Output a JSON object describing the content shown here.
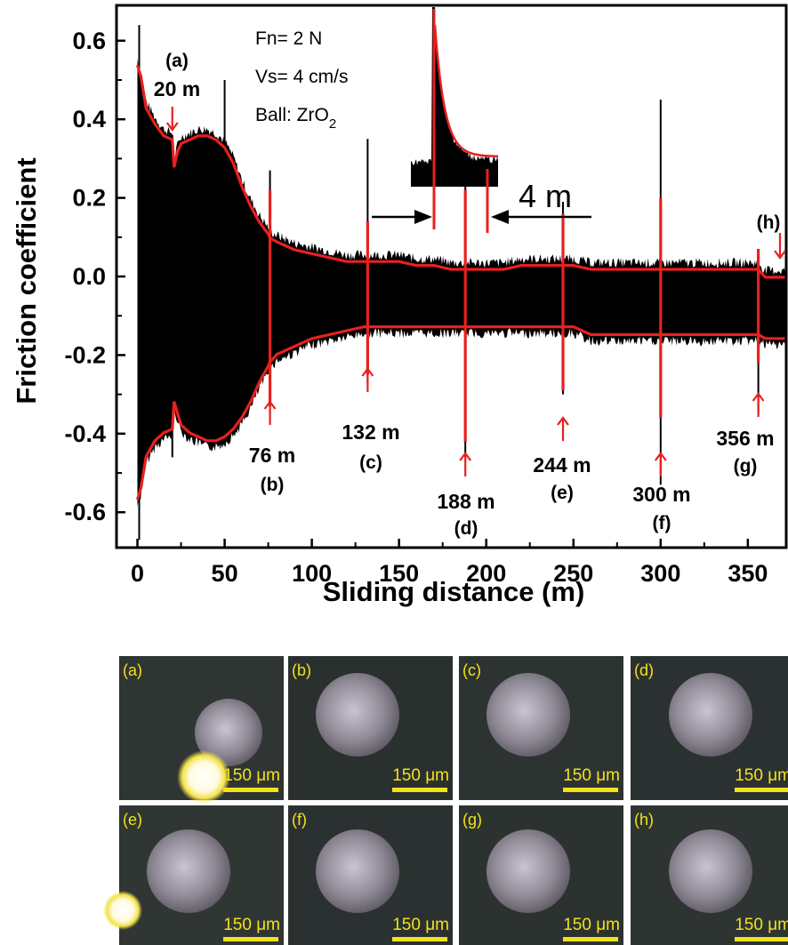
{
  "chart_data": {
    "type": "line",
    "xlabel": "Sliding distance (m)",
    "ylabel": "Friction coefficient",
    "xlim": [
      -12,
      372
    ],
    "ylim": [
      -0.69,
      0.69
    ],
    "x_ticks": [
      0,
      50,
      100,
      150,
      200,
      250,
      300,
      350
    ],
    "x_tick_labels": [
      "0",
      "50",
      "100",
      "150",
      "200",
      "250",
      "300",
      "350"
    ],
    "y_ticks": [
      0.6,
      0.4,
      0.2,
      0.0,
      -0.2,
      -0.4,
      -0.6
    ],
    "y_tick_labels": [
      "0.6",
      "0.4",
      "0.2",
      "0.0",
      "-0.2",
      "-0.4",
      "-0.6"
    ],
    "conditions": [
      "Fn= 2 N",
      "Vs= 4 cm/s",
      "Ball: ZrO"
    ],
    "conditions_subscript": "2",
    "gap_label": "4 m",
    "series": [
      {
        "style": "black filled oscillation band",
        "color": "#000000",
        "x": [
          0,
          2,
          5,
          10,
          15,
          20,
          21,
          23,
          25,
          30,
          35,
          40,
          45,
          50,
          55,
          60,
          65,
          70,
          75,
          76,
          80,
          90,
          100,
          110,
          120,
          130,
          132,
          140,
          150,
          160,
          170,
          180,
          188,
          190,
          200,
          210,
          220,
          230,
          240,
          244,
          250,
          260,
          270,
          280,
          290,
          300,
          310,
          320,
          330,
          340,
          350,
          356,
          360,
          370
        ],
        "upper": [
          0.55,
          0.52,
          0.44,
          0.4,
          0.37,
          0.36,
          0.29,
          0.33,
          0.35,
          0.36,
          0.37,
          0.37,
          0.36,
          0.34,
          0.3,
          0.24,
          0.19,
          0.15,
          0.12,
          0.11,
          0.1,
          0.08,
          0.07,
          0.06,
          0.05,
          0.05,
          0.05,
          0.05,
          0.05,
          0.04,
          0.04,
          0.03,
          0.03,
          0.03,
          0.03,
          0.03,
          0.04,
          0.04,
          0.04,
          0.04,
          0.04,
          0.03,
          0.03,
          0.03,
          0.03,
          0.03,
          0.03,
          0.03,
          0.03,
          0.03,
          0.03,
          0.03,
          0.01,
          0.01
        ],
        "lower": [
          -0.58,
          -0.55,
          -0.47,
          -0.43,
          -0.41,
          -0.4,
          -0.33,
          -0.36,
          -0.39,
          -0.41,
          -0.42,
          -0.43,
          -0.43,
          -0.42,
          -0.4,
          -0.37,
          -0.33,
          -0.28,
          -0.24,
          -0.23,
          -0.21,
          -0.19,
          -0.17,
          -0.16,
          -0.15,
          -0.14,
          -0.14,
          -0.14,
          -0.14,
          -0.14,
          -0.14,
          -0.14,
          -0.14,
          -0.14,
          -0.14,
          -0.14,
          -0.14,
          -0.14,
          -0.14,
          -0.14,
          -0.14,
          -0.16,
          -0.16,
          -0.16,
          -0.16,
          -0.16,
          -0.16,
          -0.16,
          -0.16,
          -0.16,
          -0.16,
          -0.16,
          -0.17,
          -0.17
        ]
      },
      {
        "style": "red envelope lines",
        "color": "#e8201e"
      }
    ],
    "events": [
      {
        "x": 20,
        "label": "20 m",
        "letter": "(a)",
        "side": "top"
      },
      {
        "x": 76,
        "label": "76 m",
        "letter": "(b)",
        "side": "bottom"
      },
      {
        "x": 132,
        "label": "132 m",
        "letter": "(c)",
        "side": "bottom"
      },
      {
        "x": 188,
        "label": "188 m",
        "letter": "(d)",
        "side": "bottom"
      },
      {
        "x": 244,
        "label": "244 m",
        "letter": "(e)",
        "side": "bottom"
      },
      {
        "x": 300,
        "label": "300 m",
        "letter": "(f)",
        "side": "bottom"
      },
      {
        "x": 356,
        "label": "356 m",
        "letter": "(g)",
        "side": "bottom"
      },
      {
        "x": 370,
        "label": "",
        "letter": "(h)",
        "side": "top"
      }
    ],
    "spikes": [
      {
        "x": 1,
        "top": 0.64,
        "bottom": -0.67
      },
      {
        "x": 20,
        "top": 0.36,
        "bottom": -0.46
      },
      {
        "x": 50,
        "top": 0.5,
        "bottom": -0.43
      },
      {
        "x": 76,
        "top": 0.27,
        "bottom": -0.36
      },
      {
        "x": 132,
        "top": 0.35,
        "bottom": -0.27
      },
      {
        "x": 188,
        "top": 0.3,
        "bottom": -0.46
      },
      {
        "x": 244,
        "top": 0.19,
        "bottom": -0.3
      },
      {
        "x": 300,
        "top": 0.45,
        "bottom": -0.53
      },
      {
        "x": 356,
        "top": 0.07,
        "bottom": -0.35
      }
    ],
    "red_spike_tips": [
      {
        "x": 76,
        "top": 0.22,
        "bottom": -0.33
      },
      {
        "x": 132,
        "top": 0.14,
        "bottom": -0.25
      },
      {
        "x": 188,
        "top": 0.22,
        "bottom": -0.42
      },
      {
        "x": 244,
        "top": 0.16,
        "bottom": -0.29
      },
      {
        "x": 300,
        "top": 0.2,
        "bottom": -0.36
      },
      {
        "x": 356,
        "top": 0.07,
        "bottom": -0.22
      }
    ]
  },
  "micrographs": {
    "scale_label": "150 μm",
    "panels": [
      {
        "letter": "(a)",
        "spot": "bright reflection",
        "bg": "#2f3533"
      },
      {
        "letter": "(b)",
        "bg": "#2a302e"
      },
      {
        "letter": "(c)",
        "bg": "#2d3331"
      },
      {
        "letter": "(d)",
        "bg": "#2b3130"
      },
      {
        "letter": "(e)",
        "spot": "edge flare",
        "bg": "#303634"
      },
      {
        "letter": "(f)",
        "bg": "#2b3130"
      },
      {
        "letter": "(g)",
        "bg": "#2c3230"
      },
      {
        "letter": "(h)",
        "bg": "#2e3432"
      }
    ]
  }
}
